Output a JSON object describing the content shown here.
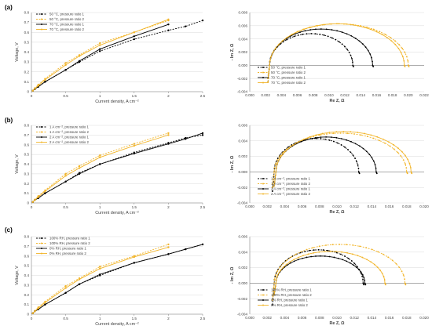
{
  "panels": [
    {
      "label": "(a)"
    },
    {
      "label": "(b)"
    },
    {
      "label": "(c)"
    }
  ],
  "colors": {
    "black": "#000000",
    "gold": "#F2B52A",
    "grid": "#d9d9d9",
    "axis": "#808080",
    "text": "#404040"
  },
  "chart_data": [
    {
      "type": "line",
      "panel": "(a)",
      "xlabel": "Current density, A cm⁻²",
      "ylabel": "Voltage, V",
      "xlim": [
        0,
        2.5
      ],
      "ylim": [
        0,
        0.8
      ],
      "xticks": [
        "0",
        "0.5",
        "1",
        "1.5",
        "2",
        "2.5"
      ],
      "yticks": [
        "0",
        "0.1",
        "0.2",
        "0.3",
        "0.4",
        "0.5",
        "0.6",
        "0.7",
        "0.8"
      ],
      "grid": true,
      "legend": "top-left",
      "series": [
        {
          "name": "50 °C, pressure ratio 1",
          "color": "#000000",
          "dash": "dashed",
          "marker": "circle",
          "x": [
            0.02,
            0.05,
            0.1,
            0.2,
            0.5,
            0.7,
            1.0,
            1.5,
            2.0,
            2.25,
            2.5
          ],
          "y": [
            0.01,
            0.025,
            0.05,
            0.1,
            0.22,
            0.3,
            0.41,
            0.53,
            0.62,
            0.66,
            0.72
          ]
        },
        {
          "name": "50 °C, pressure ratio 2",
          "color": "#F2B52A",
          "dash": "dashed",
          "marker": "circle",
          "x": [
            0.02,
            0.05,
            0.1,
            0.2,
            0.5,
            0.7,
            1.0,
            1.5,
            2.0
          ],
          "y": [
            0.01,
            0.035,
            0.07,
            0.13,
            0.29,
            0.37,
            0.49,
            0.6,
            0.72
          ]
        },
        {
          "name": "70 °C, pressure ratio 1",
          "color": "#000000",
          "dash": "solid",
          "marker": "circle",
          "x": [
            0.02,
            0.05,
            0.1,
            0.2,
            0.5,
            0.7,
            1.0,
            1.5,
            2.0
          ],
          "y": [
            0.01,
            0.03,
            0.05,
            0.1,
            0.22,
            0.31,
            0.43,
            0.56,
            0.68
          ]
        },
        {
          "name": "70 °C, pressure ratio 2",
          "color": "#F2B52A",
          "dash": "solid",
          "marker": "circle",
          "x": [
            0.02,
            0.05,
            0.1,
            0.2,
            0.5,
            0.7,
            1.0,
            1.5,
            2.0
          ],
          "y": [
            0.01,
            0.03,
            0.06,
            0.12,
            0.27,
            0.36,
            0.47,
            0.6,
            0.73
          ]
        }
      ]
    },
    {
      "type": "scatter",
      "panel": "(a)",
      "xlabel": "Re Z, Ω",
      "ylabel": "- Im Z, Ω",
      "xlim": [
        0,
        0.022
      ],
      "ylim": [
        -0.004,
        0.008
      ],
      "xticks": [
        "0.000",
        "0.002",
        "0.004",
        "0.006",
        "0.008",
        "0.010",
        "0.012",
        "0.014",
        "0.016",
        "0.018",
        "0.020",
        "0.022"
      ],
      "yticks": [
        "-0.004",
        "-0.002",
        "0.000",
        "0.002",
        "0.004",
        "0.006",
        "0.008"
      ],
      "grid": true,
      "legend": "bottom-left",
      "series": [
        {
          "name": "50 °C, pressure ratio 1",
          "color": "#000000",
          "dash": "dashed",
          "marker": "circle",
          "arc": {
            "start": 0.0025,
            "end": 0.013,
            "peak": 0.0048,
            "tail": -0.0025
          }
        },
        {
          "name": "50 °C, pressure ratio 2",
          "color": "#F2B52A",
          "dash": "dashed",
          "marker": "circle",
          "arc": {
            "start": 0.0025,
            "end": 0.02,
            "peak": 0.0063,
            "tail": -0.0025
          }
        },
        {
          "name": "70 °C, pressure ratio 1",
          "color": "#000000",
          "dash": "solid",
          "marker": "circle",
          "arc": {
            "start": 0.0025,
            "end": 0.0155,
            "peak": 0.0055,
            "tail": -0.002
          }
        },
        {
          "name": "70 °C, pressure ratio 2",
          "color": "#F2B52A",
          "dash": "solid",
          "marker": "circle",
          "arc": {
            "start": 0.0025,
            "end": 0.0195,
            "peak": 0.0063,
            "tail": -0.002
          }
        }
      ]
    },
    {
      "type": "line",
      "panel": "(b)",
      "xlabel": "Current density, A cm⁻²",
      "ylabel": "Voltage, V",
      "xlim": [
        0,
        2.5
      ],
      "ylim": [
        0,
        0.8
      ],
      "xticks": [
        "0",
        "0.5",
        "1",
        "1.5",
        "2",
        "2.5"
      ],
      "yticks": [
        "0",
        "0.1",
        "0.2",
        "0.3",
        "0.4",
        "0.5",
        "0.6",
        "0.7",
        "0.8"
      ],
      "grid": true,
      "legend": "top-left",
      "series": [
        {
          "name": "1 A cm⁻², pressure ratio 1",
          "color": "#000000",
          "dash": "dashed",
          "marker": "circle",
          "x": [
            0.02,
            0.05,
            0.1,
            0.2,
            0.5,
            0.7,
            1.0,
            1.5,
            2.0,
            2.25,
            2.5
          ],
          "y": [
            0.01,
            0.03,
            0.05,
            0.1,
            0.22,
            0.31,
            0.4,
            0.52,
            0.62,
            0.67,
            0.7
          ]
        },
        {
          "name": "1 A cm⁻², pressure ratio 2",
          "color": "#F2B52A",
          "dash": "dashed",
          "marker": "circle",
          "x": [
            0.02,
            0.05,
            0.1,
            0.2,
            0.5,
            0.7,
            1.0,
            1.5,
            2.0
          ],
          "y": [
            0.01,
            0.035,
            0.07,
            0.13,
            0.3,
            0.38,
            0.49,
            0.61,
            0.72
          ]
        },
        {
          "name": "2 A cm⁻², pressure ratio 1",
          "color": "#000000",
          "dash": "solid",
          "marker": "circle",
          "x": [
            0.02,
            0.05,
            0.1,
            0.2,
            0.5,
            0.7,
            1.0,
            1.5,
            2.0,
            2.25,
            2.5
          ],
          "y": [
            0.01,
            0.03,
            0.05,
            0.1,
            0.22,
            0.3,
            0.4,
            0.51,
            0.61,
            0.66,
            0.72
          ]
        },
        {
          "name": "2 A cm⁻², pressure ratio 2",
          "color": "#F2B52A",
          "dash": "solid",
          "marker": "circle",
          "x": [
            0.02,
            0.05,
            0.1,
            0.2,
            0.5,
            0.7,
            1.0,
            1.5,
            2.0
          ],
          "y": [
            0.01,
            0.03,
            0.06,
            0.12,
            0.28,
            0.36,
            0.47,
            0.59,
            0.7
          ]
        }
      ]
    },
    {
      "type": "scatter",
      "panel": "(b)",
      "xlabel": "Re Z, Ω",
      "ylabel": "- Im Z, Ω",
      "xlim": [
        0,
        0.02
      ],
      "ylim": [
        -0.004,
        0.006
      ],
      "xticks": [
        "0.000",
        "0.002",
        "0.004",
        "0.006",
        "0.008",
        "0.010",
        "0.012",
        "0.014",
        "0.016",
        "0.018",
        "0.020"
      ],
      "yticks": [
        "-0.004",
        "-0.002",
        "0.000",
        "0.002",
        "0.004",
        "0.006"
      ],
      "grid": true,
      "legend": "bottom-left",
      "series": [
        {
          "name": "1 A cm⁻², pressure ratio 1",
          "color": "#000000",
          "dash": "dashed",
          "marker": "circle",
          "arc": {
            "start": 0.0028,
            "end": 0.0125,
            "peak": 0.0043,
            "tail": -0.0025
          }
        },
        {
          "name": "1 A cm⁻², pressure ratio 2",
          "color": "#F2B52A",
          "dash": "dashed",
          "marker": "circle",
          "arc": {
            "start": 0.0028,
            "end": 0.018,
            "peak": 0.005,
            "tail": -0.002
          }
        },
        {
          "name": "2 A cm⁻², pressure ratio 1",
          "color": "#000000",
          "dash": "solid",
          "marker": "circle",
          "arc": {
            "start": 0.003,
            "end": 0.0145,
            "peak": 0.0045,
            "tail": -0.0018
          }
        },
        {
          "name": "2 A cm⁻², pressure ratio 2",
          "color": "#F2B52A",
          "dash": "solid",
          "marker": "circle",
          "arc": {
            "start": 0.003,
            "end": 0.0185,
            "peak": 0.0052,
            "tail": -0.0018
          }
        }
      ]
    },
    {
      "type": "line",
      "panel": "(c)",
      "xlabel": "Current density, A cm⁻²",
      "ylabel": "Voltage, V",
      "xlim": [
        0,
        2.5
      ],
      "ylim": [
        0,
        0.8
      ],
      "xticks": [
        "0",
        "0.5",
        "1",
        "1.5",
        "2",
        "2.5"
      ],
      "yticks": [
        "0",
        "0.1",
        "0.2",
        "0.3",
        "0.4",
        "0.5",
        "0.6",
        "0.7",
        "0.8"
      ],
      "grid": true,
      "legend": "top-left",
      "series": [
        {
          "name": "100% RH, pressure ratio 1",
          "color": "#000000",
          "dash": "dashed",
          "marker": "circle",
          "x": [
            0.02,
            0.05,
            0.1,
            0.2,
            0.5,
            0.7,
            1.0,
            1.5,
            2.0,
            2.25,
            2.5
          ],
          "y": [
            0.01,
            0.03,
            0.05,
            0.1,
            0.22,
            0.31,
            0.4,
            0.53,
            0.62,
            0.67,
            0.72
          ]
        },
        {
          "name": "100% RH, pressure ratio 2",
          "color": "#F2B52A",
          "dash": "dashed",
          "marker": "circle",
          "x": [
            0.02,
            0.05,
            0.1,
            0.2,
            0.5,
            0.7,
            1.0,
            1.5,
            2.0
          ],
          "y": [
            0.01,
            0.035,
            0.07,
            0.13,
            0.29,
            0.37,
            0.49,
            0.6,
            0.72
          ]
        },
        {
          "name": "0% RH, pressure ratio 1",
          "color": "#000000",
          "dash": "solid",
          "marker": "circle",
          "x": [
            0.02,
            0.05,
            0.1,
            0.2,
            0.5,
            0.7,
            1.0,
            1.5,
            2.0,
            2.25,
            2.5
          ],
          "y": [
            0.01,
            0.03,
            0.05,
            0.1,
            0.22,
            0.31,
            0.41,
            0.53,
            0.62,
            0.67,
            0.72
          ]
        },
        {
          "name": "0% RH, pressure ratio 2",
          "color": "#F2B52A",
          "dash": "solid",
          "marker": "circle",
          "x": [
            0.02,
            0.05,
            0.1,
            0.2,
            0.5,
            0.7,
            1.0,
            1.5,
            2.0
          ],
          "y": [
            0.01,
            0.03,
            0.06,
            0.12,
            0.27,
            0.36,
            0.47,
            0.59,
            0.69
          ]
        }
      ]
    },
    {
      "type": "scatter",
      "panel": "(c)",
      "xlabel": "Re Z, Ω",
      "ylabel": "- Im Z, Ω",
      "xlim": [
        0,
        0.02
      ],
      "ylim": [
        -0.004,
        0.006
      ],
      "xticks": [
        "0.000",
        "0.002",
        "0.004",
        "0.006",
        "0.008",
        "0.010",
        "0.012",
        "0.014",
        "0.016",
        "0.018",
        "0.020"
      ],
      "yticks": [
        "-0.004",
        "-0.002",
        "0.000",
        "0.002",
        "0.004",
        "0.006"
      ],
      "grid": true,
      "legend": "bottom-left",
      "series": [
        {
          "name": "100% RH, pressure ratio 1",
          "color": "#000000",
          "dash": "dashed",
          "marker": "circle",
          "arc": {
            "start": 0.0028,
            "end": 0.013,
            "peak": 0.0043,
            "tail": -0.0028
          }
        },
        {
          "name": "100% RH, pressure ratio 2",
          "color": "#F2B52A",
          "dash": "dashed",
          "marker": "circle",
          "arc": {
            "start": 0.0028,
            "end": 0.0178,
            "peak": 0.005,
            "tail": -0.0022
          }
        },
        {
          "name": "0% RH, pressure ratio 1",
          "color": "#000000",
          "dash": "solid",
          "marker": "circle",
          "arc": {
            "start": 0.003,
            "end": 0.0132,
            "peak": 0.0035,
            "tail": -0.0015
          }
        },
        {
          "name": "0% RH, pressure ratio 2",
          "color": "#F2B52A",
          "dash": "solid",
          "marker": "circle",
          "arc": {
            "start": 0.003,
            "end": 0.0155,
            "peak": 0.0041,
            "tail": -0.0015
          }
        }
      ]
    }
  ]
}
